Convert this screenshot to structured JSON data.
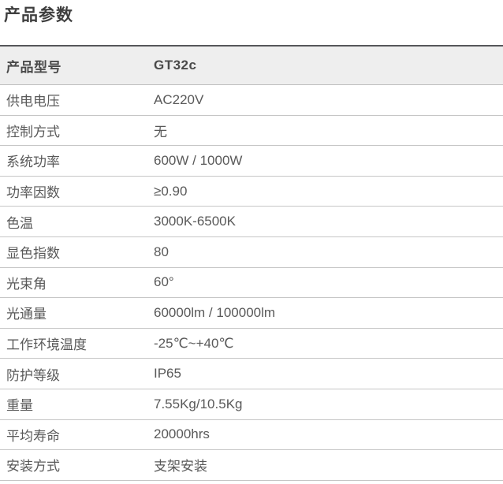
{
  "title": "产品参数",
  "colors": {
    "title_text": "#3f3f3f",
    "cell_text": "#595959",
    "table_top_border": "#55565a",
    "row_border": "#c6c6c6",
    "header_row_bg": "#eeeeee"
  },
  "table": {
    "header": {
      "label": "产品型号",
      "value": "GT32c"
    },
    "rows": [
      {
        "label": "供电电压",
        "value": "AC220V"
      },
      {
        "label": "控制方式",
        "value": "无"
      },
      {
        "label": "系统功率",
        "value": "600W / 1000W"
      },
      {
        "label": "功率因数",
        "value": "≥0.90"
      },
      {
        "label": "色温",
        "value": "3000K-6500K"
      },
      {
        "label": "显色指数",
        "value": "80"
      },
      {
        "label": "光束角",
        "value": "60°"
      },
      {
        "label": "光通量",
        "value": "60000lm / 100000lm"
      },
      {
        "label": "工作环境温度",
        "value": "-25℃~+40℃"
      },
      {
        "label": "防护等级",
        "value": "IP65"
      },
      {
        "label": "重量",
        "value": "7.55Kg/10.5Kg"
      },
      {
        "label": "平均寿命",
        "value": "20000hrs"
      },
      {
        "label": "安装方式",
        "value": "支架安装"
      }
    ]
  }
}
